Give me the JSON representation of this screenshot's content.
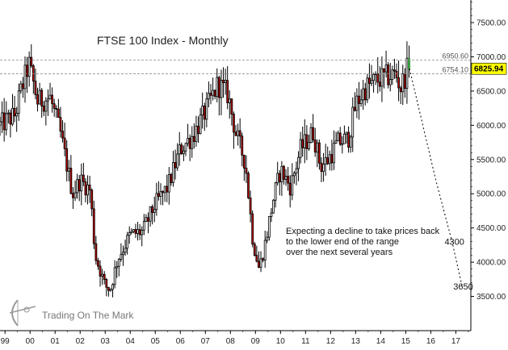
{
  "chart_data": {
    "type": "candlestick",
    "title": "FTSE 100 Index - Monthly",
    "x_tick_labels": [
      "99",
      "00",
      "01",
      "02",
      "03",
      "04",
      "05",
      "06",
      "07",
      "08",
      "09",
      "10",
      "11",
      "12",
      "13",
      "14",
      "15",
      "16",
      "17"
    ],
    "x_range": [
      1998.8,
      2017.6
    ],
    "y_tick_labels": [
      "3500.00",
      "4000.00",
      "4500.00",
      "5000.00",
      "5500.00",
      "6000.00",
      "6500.00",
      "7000.00",
      "7500.00"
    ],
    "ylim": [
      3000,
      7830
    ],
    "grid": false,
    "up_color": "#ffffff",
    "down_color": "#c00000",
    "last_candle_color": "#3cb043",
    "reference_levels": [
      {
        "label": "6950.60",
        "value": 6950.6
      },
      {
        "label": "6754.10",
        "value": 6754.1
      }
    ],
    "current_value": {
      "label": "6825.94",
      "value": 6825.94,
      "color": "#ffff00"
    },
    "projection": {
      "points": [
        [
          2015.15,
          6826
        ],
        [
          2016.2,
          5200
        ],
        [
          2016.85,
          4300
        ],
        [
          2017.25,
          3650
        ]
      ],
      "labels": [
        {
          "text": "4300",
          "x": 2016.55,
          "y": 4300
        },
        {
          "text": "3650",
          "x": 2016.9,
          "y": 3650
        }
      ]
    },
    "annotation": {
      "lines": [
        "Expecting a decline to take prices back",
        "to the lower end of the range",
        "over the next several years"
      ]
    },
    "anchors": [
      [
        1998.8,
        6000
      ],
      [
        1999.4,
        6150
      ],
      [
        1999.6,
        6450
      ],
      [
        1999.95,
        6900
      ],
      [
        2000.3,
        6350
      ],
      [
        2000.8,
        6400
      ],
      [
        2001.2,
        5900
      ],
      [
        2001.7,
        5000
      ],
      [
        2002.0,
        5200
      ],
      [
        2002.4,
        5050
      ],
      [
        2002.6,
        4100
      ],
      [
        2003.0,
        3650
      ],
      [
        2003.2,
        3600
      ],
      [
        2003.5,
        4050
      ],
      [
        2004.0,
        4400
      ],
      [
        2004.5,
        4450
      ],
      [
        2005.0,
        4850
      ],
      [
        2005.5,
        5100
      ],
      [
        2006.0,
        5650
      ],
      [
        2006.5,
        5850
      ],
      [
        2007.0,
        6200
      ],
      [
        2007.5,
        6600
      ],
      [
        2007.9,
        6450
      ],
      [
        2008.2,
        5900
      ],
      [
        2008.6,
        5450
      ],
      [
        2008.9,
        4300
      ],
      [
        2009.15,
        3900
      ],
      [
        2009.4,
        4300
      ],
      [
        2009.7,
        4900
      ],
      [
        2010.0,
        5350
      ],
      [
        2010.4,
        5100
      ],
      [
        2010.8,
        5650
      ],
      [
        2011.3,
        5900
      ],
      [
        2011.6,
        5400
      ],
      [
        2011.9,
        5500
      ],
      [
        2012.3,
        5750
      ],
      [
        2012.7,
        5800
      ],
      [
        2013.0,
        6300
      ],
      [
        2013.4,
        6550
      ],
      [
        2013.8,
        6650
      ],
      [
        2014.2,
        6700
      ],
      [
        2014.6,
        6750
      ],
      [
        2014.8,
        6550
      ],
      [
        2015.05,
        6800
      ],
      [
        2015.15,
        6826
      ]
    ]
  },
  "watermark": {
    "text": "Trading On The Mark",
    "icon": "archer-bow-icon"
  }
}
